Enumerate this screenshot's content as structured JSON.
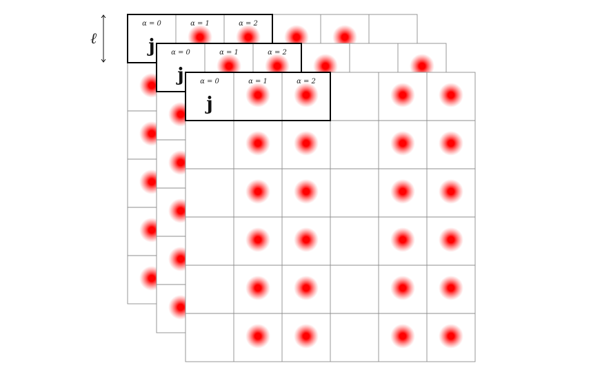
{
  "length_marker": {
    "label": "ℓ"
  },
  "orbital_labels": [
    "α = 0",
    "α = 1",
    "α = 2"
  ],
  "site_label": "j",
  "colors": {
    "orbital_dot": "#ff0000",
    "grid_line": "#8c8c8c",
    "highlight_border": "#000000"
  },
  "layers": [
    {
      "name": "back",
      "rows": 6,
      "cols": 6,
      "occupied": [
        [
          0,
          1,
          1,
          1,
          1,
          0
        ],
        [
          1,
          1,
          1,
          0,
          1,
          1
        ],
        [
          1,
          1,
          1,
          0,
          1,
          1
        ],
        [
          1,
          1,
          1,
          0,
          1,
          1
        ],
        [
          1,
          1,
          1,
          0,
          1,
          1
        ],
        [
          1,
          1,
          1,
          0,
          1,
          1
        ]
      ]
    },
    {
      "name": "middle",
      "rows": 6,
      "cols": 6,
      "occupied": [
        [
          0,
          1,
          1,
          1,
          0,
          1
        ],
        [
          1,
          1,
          1,
          0,
          1,
          1
        ],
        [
          1,
          1,
          1,
          0,
          1,
          1
        ],
        [
          1,
          1,
          1,
          0,
          1,
          1
        ],
        [
          1,
          1,
          1,
          0,
          1,
          1
        ],
        [
          1,
          1,
          1,
          0,
          1,
          1
        ]
      ]
    },
    {
      "name": "front",
      "rows": 6,
      "cols": 6,
      "occupied": [
        [
          0,
          1,
          1,
          0,
          1,
          1
        ],
        [
          0,
          1,
          1,
          0,
          1,
          1
        ],
        [
          0,
          1,
          1,
          0,
          1,
          1
        ],
        [
          0,
          1,
          1,
          0,
          1,
          1
        ],
        [
          0,
          1,
          1,
          0,
          1,
          1
        ],
        [
          0,
          1,
          1,
          0,
          1,
          1
        ]
      ]
    }
  ]
}
